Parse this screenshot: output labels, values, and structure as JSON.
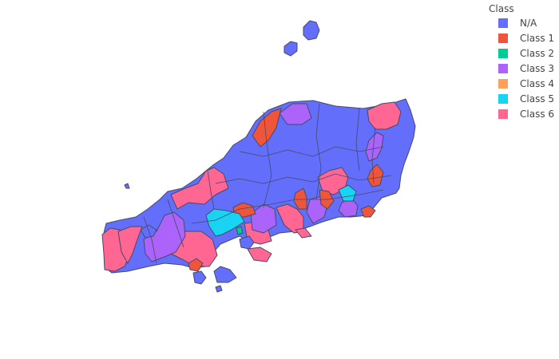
{
  "legend": {
    "title": "Class",
    "items": [
      {
        "label": "N/A",
        "color": "#636efa"
      },
      {
        "label": "Class 1",
        "color": "#ef553b"
      },
      {
        "label": "Class 2",
        "color": "#00cc96"
      },
      {
        "label": "Class 3",
        "color": "#ab63fa"
      },
      {
        "label": "Class 4",
        "color": "#ffa15a"
      },
      {
        "label": "Class 5",
        "color": "#19d3f3"
      },
      {
        "label": "Class 6",
        "color": "#ff6692"
      }
    ]
  },
  "colors": {
    "border": "#444a6b",
    "background": "#ffffff"
  }
}
